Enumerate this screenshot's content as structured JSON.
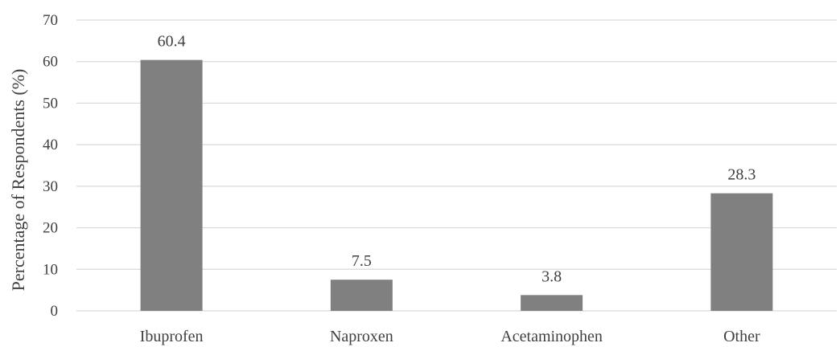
{
  "chart_data": {
    "type": "bar",
    "title": "",
    "xlabel": "",
    "ylabel": "Percentage of Respondents (%)",
    "categories": [
      "Ibuprofen",
      "Naproxen",
      "Acetaminophen",
      "Other"
    ],
    "values": [
      60.4,
      7.5,
      3.8,
      28.3
    ],
    "data_labels": [
      "60.4",
      "7.5",
      "3.8",
      "28.3"
    ],
    "ylim": [
      0,
      70
    ],
    "yticks": [
      0,
      10,
      20,
      30,
      40,
      50,
      60,
      70
    ],
    "grid": true,
    "legend": "none",
    "colors": {
      "bar": "#808080",
      "grid": "#d9d9d9",
      "text": "#404040"
    }
  }
}
